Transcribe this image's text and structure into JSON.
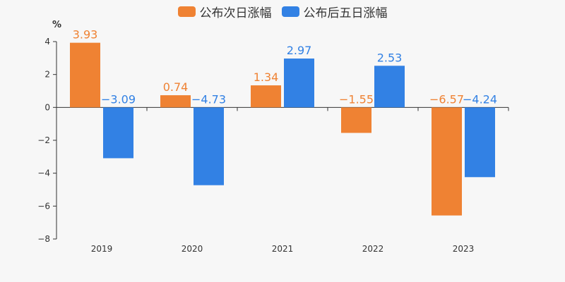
{
  "chart_data": {
    "type": "bar",
    "unit": "%",
    "categories": [
      "2019",
      "2020",
      "2021",
      "2022",
      "2023"
    ],
    "series": [
      {
        "name": "公布次日涨幅",
        "color": "#ef8233",
        "values": [
          3.93,
          0.74,
          1.34,
          -1.55,
          -6.57
        ],
        "labels": [
          "3.93",
          "0.74",
          "1.34",
          "−1.55",
          "−6.57"
        ]
      },
      {
        "name": "公布后五日涨幅",
        "color": "#3281e4",
        "values": [
          -3.09,
          -4.73,
          2.97,
          2.53,
          -4.24
        ],
        "labels": [
          "−3.09",
          "−4.73",
          "2.97",
          "2.53",
          "−4.24"
        ]
      }
    ],
    "ylim": [
      -8,
      4
    ],
    "yticks": [
      4,
      2,
      0,
      -2,
      -4,
      -6,
      -8
    ],
    "ytick_labels": [
      "4",
      "2",
      "0",
      "−2",
      "−4",
      "−6",
      "−8"
    ],
    "legend_position": "top-center",
    "grid": false
  }
}
